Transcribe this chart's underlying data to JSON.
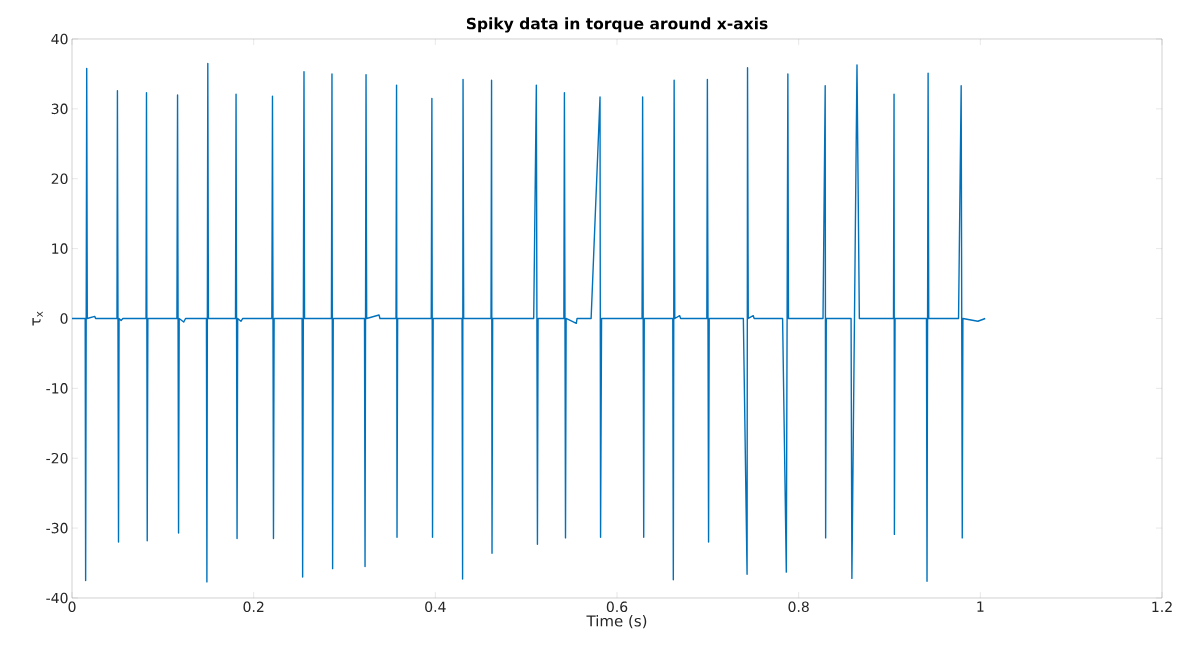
{
  "chart_data": {
    "type": "line",
    "title": "Spiky data in torque around x-axis",
    "xlabel": "Time (s)",
    "ylabel": "τ$_{x}$",
    "color": "#0072bd",
    "xlim": [
      0,
      1.2
    ],
    "ylim": [
      -40,
      40
    ],
    "xticks": [
      0,
      0.2,
      0.4,
      0.6,
      0.8,
      1,
      1.2
    ],
    "yticks": [
      -40,
      -30,
      -20,
      -10,
      0,
      10,
      20,
      30,
      40
    ],
    "x": [
      0,
      0.0145,
      0.015,
      0.0162,
      0.0168,
      0.025,
      0.026,
      0.0495,
      0.05,
      0.0512,
      0.0518,
      0.054,
      0.056,
      0.0815,
      0.082,
      0.0828,
      0.0835,
      0.1155,
      0.1162,
      0.1173,
      0.118,
      0.123,
      0.125,
      0.148,
      0.1485,
      0.1495,
      0.1502,
      0.18,
      0.1806,
      0.1817,
      0.1824,
      0.186,
      0.188,
      0.22,
      0.2207,
      0.2218,
      0.2225,
      0.2533,
      0.2539,
      0.2554,
      0.256,
      0.2856,
      0.2862,
      0.2869,
      0.2876,
      0.322,
      0.3226,
      0.3237,
      0.3244,
      0.338,
      0.339,
      0.3567,
      0.3573,
      0.3578,
      0.3585,
      0.3955,
      0.3962,
      0.3969,
      0.3976,
      0.4294,
      0.43,
      0.4305,
      0.4312,
      0.4613,
      0.4619,
      0.4624,
      0.4631,
      0.5083,
      0.5112,
      0.5124,
      0.5131,
      0.5415,
      0.5421,
      0.5433,
      0.544,
      0.5552,
      0.556,
      0.5715,
      0.5813,
      0.5819,
      0.583,
      0.6276,
      0.6282,
      0.6294,
      0.63,
      0.6614,
      0.662,
      0.6629,
      0.6636,
      0.669,
      0.67,
      0.6989,
      0.6995,
      0.7008,
      0.7015,
      0.7391,
      0.7432,
      0.7437,
      0.7445,
      0.75,
      0.751,
      0.7823,
      0.7864,
      0.7881,
      0.7888,
      0.8268,
      0.8292,
      0.8297,
      0.8304,
      0.8577,
      0.8586,
      0.8642,
      0.8668,
      0.9044,
      0.905,
      0.9054,
      0.9061,
      0.9407,
      0.9413,
      0.9425,
      0.9432,
      0.976,
      0.9789,
      0.9801,
      0.9808,
      0.9973,
      1.0054
    ],
    "values": [
      0,
      0,
      -37.5,
      35.8,
      0,
      0.3,
      0,
      0,
      32.6,
      -32.0,
      0,
      -0.3,
      0,
      0,
      32.3,
      -31.8,
      0,
      0,
      32.0,
      -30.7,
      0,
      -0.5,
      0,
      0,
      -37.7,
      36.5,
      0,
      0,
      32.1,
      -31.5,
      0,
      -0.4,
      0,
      0,
      31.8,
      -31.5,
      0,
      0,
      -37.0,
      35.3,
      0,
      0,
      35.0,
      -35.8,
      0,
      0,
      -35.5,
      34.9,
      0,
      0.5,
      0,
      0,
      33.4,
      -31.3,
      0,
      0,
      31.5,
      -31.3,
      0,
      0,
      -37.3,
      34.2,
      0,
      0,
      34.1,
      -33.6,
      0,
      0,
      33.4,
      -32.3,
      0,
      0,
      32.3,
      -31.4,
      0,
      -0.7,
      0,
      0,
      31.7,
      -31.3,
      0,
      0,
      31.7,
      -31.3,
      0,
      0,
      -37.4,
      34.1,
      0,
      0.4,
      0,
      0,
      34.2,
      -32.0,
      0,
      0,
      -36.6,
      35.9,
      0,
      0.4,
      0,
      0,
      -36.3,
      35.0,
      0,
      0,
      33.3,
      -31.4,
      0,
      0,
      -37.2,
      36.3,
      0,
      0,
      32.1,
      -30.9,
      0,
      0,
      -37.6,
      35.1,
      0,
      0,
      33.3,
      -31.4,
      0,
      -0.4,
      0
    ]
  }
}
